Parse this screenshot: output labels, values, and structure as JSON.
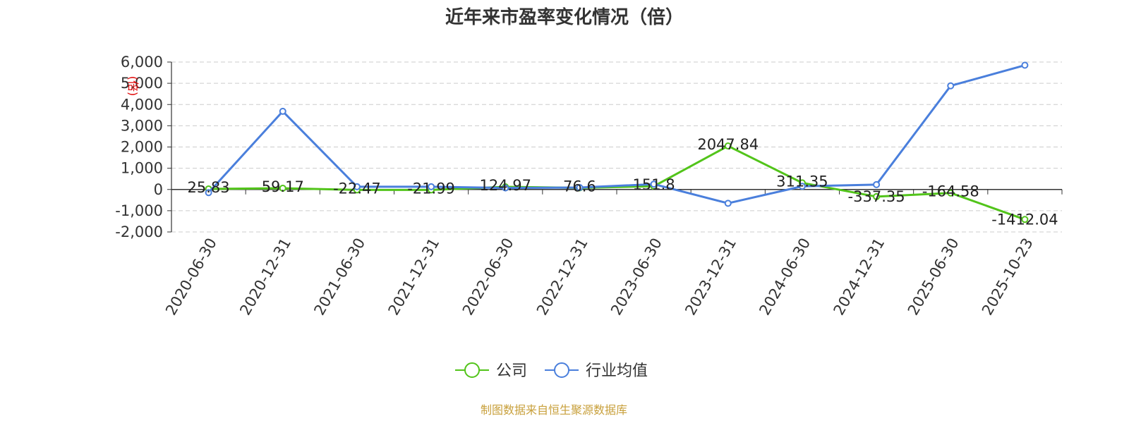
{
  "chart_data": {
    "type": "line",
    "title": "近年来市盈率变化情况（倍）",
    "ylabel": "(倍)",
    "categories": [
      "2020-06-30",
      "2020-12-31",
      "2021-06-30",
      "2021-12-31",
      "2022-06-30",
      "2022-12-31",
      "2023-06-30",
      "2023-12-31",
      "2024-06-30",
      "2024-12-31",
      "2025-06-30",
      "2025-10-23"
    ],
    "ylim": [
      -2000,
      6000
    ],
    "yticks": [
      6000,
      5000,
      4000,
      3000,
      2000,
      1000,
      0,
      -1000,
      -2000
    ],
    "ytick_labels": [
      "6,000",
      "5,000",
      "4,000",
      "3,000",
      "2,000",
      "1,000",
      "0",
      "-1,000",
      "-2,000"
    ],
    "grid": true,
    "legend_position": "bottom-center",
    "series": [
      {
        "name": "公司",
        "color": "#52c41a",
        "values": [
          25.83,
          59.17,
          -22.47,
          -21.99,
          124.97,
          76.6,
          151.8,
          2047.84,
          311.35,
          -337.35,
          -164.58,
          -1412.04
        ],
        "labels": [
          "25.83",
          "59.17",
          "-22.47",
          "-21.99",
          "124.97",
          "76.6",
          "151.8",
          "2047.84",
          "311.35",
          "-337.35",
          "-164.58",
          "-1412.04"
        ]
      },
      {
        "name": "行业均值",
        "color": "#4a7fdc",
        "values": [
          -150,
          3680,
          130,
          130,
          70,
          90,
          250,
          -650,
          150,
          230,
          4880,
          5850
        ]
      }
    ]
  },
  "source": "制图数据来自恒生聚源数据库"
}
